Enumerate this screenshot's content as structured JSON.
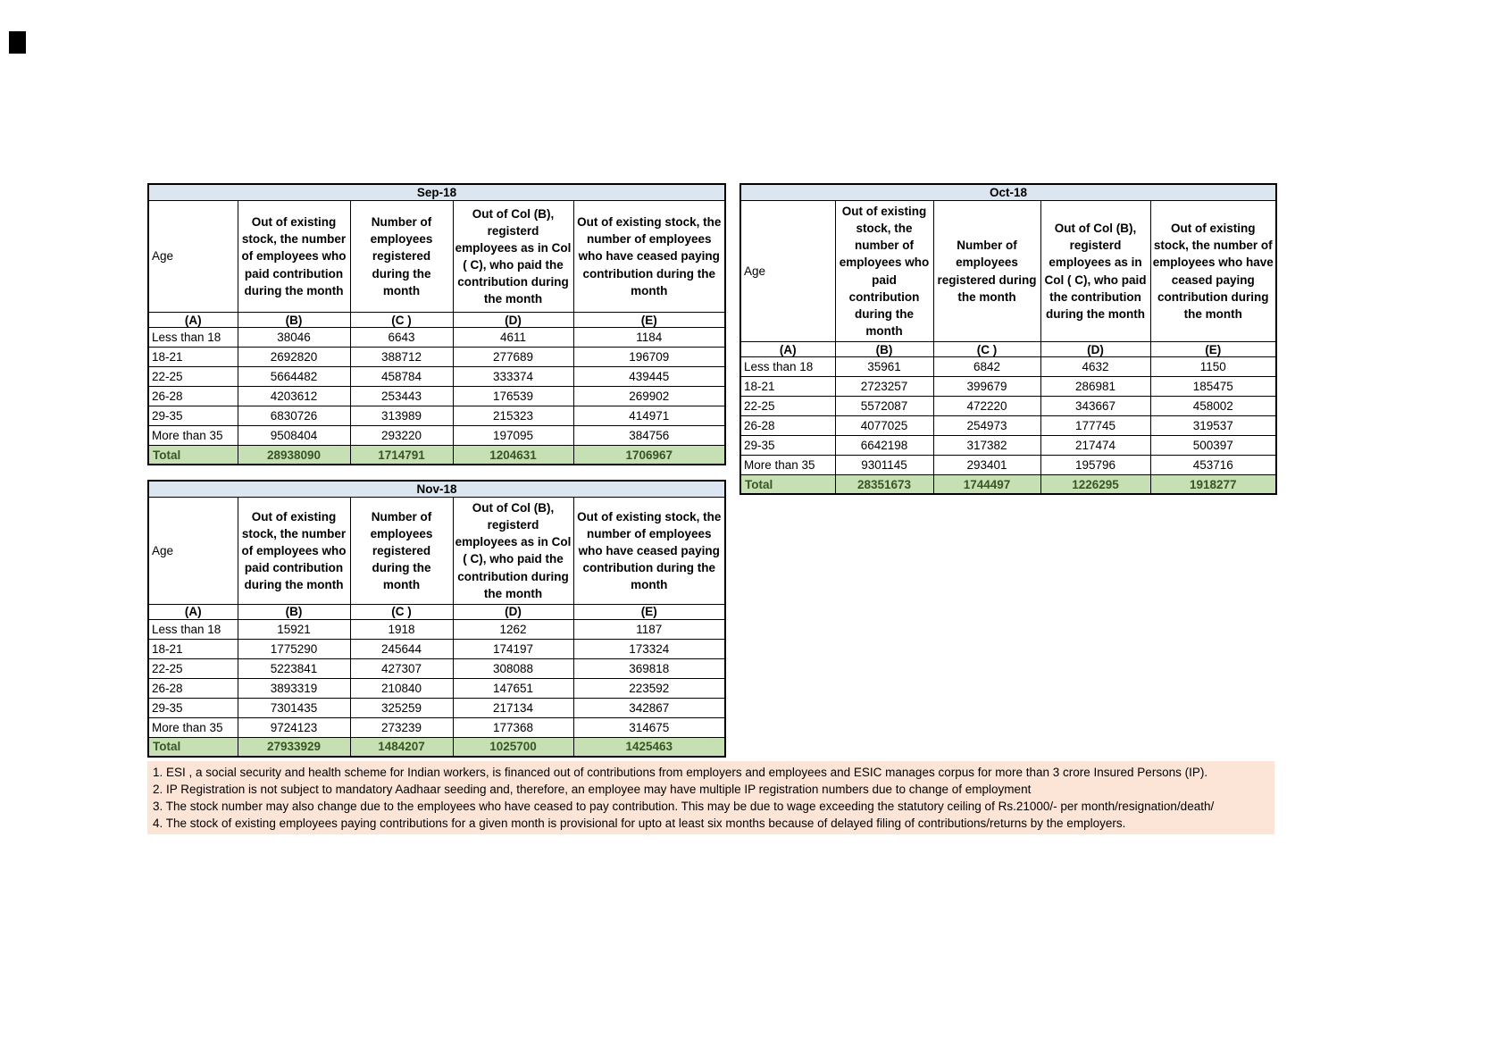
{
  "columns": {
    "age_label": "Age",
    "b": "Out of existing stock, the number of employees who paid contribution during the month",
    "c": "Number of employees registered during the month",
    "d": "Out of Col (B), registerd employees as in Col ( C), who paid the contribution during the month",
    "e": "Out of existing stock, the number of  employees  who have ceased paying contribution during the month",
    "sub": [
      "(A)",
      "(B)",
      "(C )",
      "(D)",
      "(E)"
    ]
  },
  "tables": [
    {
      "title": "Sep-18",
      "rows": [
        [
          "Less than 18",
          "38046",
          "6643",
          "4611",
          "1184"
        ],
        [
          "18-21",
          "2692820",
          "388712",
          "277689",
          "196709"
        ],
        [
          "22-25",
          "5664482",
          "458784",
          "333374",
          "439445"
        ],
        [
          "26-28",
          "4203612",
          "253443",
          "176539",
          "269902"
        ],
        [
          "29-35",
          "6830726",
          "313989",
          "215323",
          "414971"
        ],
        [
          "More than 35",
          "9508404",
          "293220",
          "197095",
          "384756"
        ]
      ],
      "total": [
        "Total",
        "28938090",
        "1714791",
        "1204631",
        "1706967"
      ]
    },
    {
      "title": "Oct-18",
      "rows": [
        [
          "Less than 18",
          "35961",
          "6842",
          "4632",
          "1150"
        ],
        [
          "18-21",
          "2723257",
          "399679",
          "286981",
          "185475"
        ],
        [
          "22-25",
          "5572087",
          "472220",
          "343667",
          "458002"
        ],
        [
          "26-28",
          "4077025",
          "254973",
          "177745",
          "319537"
        ],
        [
          "29-35",
          "6642198",
          "317382",
          "217474",
          "500397"
        ],
        [
          "More than 35",
          "9301145",
          "293401",
          "195796",
          "453716"
        ]
      ],
      "total": [
        "Total",
        "28351673",
        "1744497",
        "1226295",
        "1918277"
      ]
    },
    {
      "title": "Nov-18",
      "rows": [
        [
          "Less than 18",
          "15921",
          "1918",
          "1262",
          "1187"
        ],
        [
          "18-21",
          "1775290",
          "245644",
          "174197",
          "173324"
        ],
        [
          "22-25",
          "5223841",
          "427307",
          "308088",
          "369818"
        ],
        [
          "26-28",
          "3893319",
          "210840",
          "147651",
          "223592"
        ],
        [
          "29-35",
          "7301435",
          "325259",
          "217134",
          "342867"
        ],
        [
          "More than 35",
          "9724123",
          "273239",
          "177368",
          "314675"
        ]
      ],
      "total": [
        "Total",
        "27933929",
        "1484207",
        "1025700",
        "1425463"
      ]
    }
  ],
  "footnotes": [
    "1. ESI , a social security and health scheme for Indian workers, is financed out of contributions from employers and employees and ESIC manages corpus for more than 3 crore Insured Persons (IP).",
    "2. IP Registration is not subject to mandatory Aadhaar seeding and, therefore, an employee may have multiple IP registration numbers due to change of employment",
    "3. The stock number may also change due to the employees who have ceased to pay contribution. This may  be due to wage exceeding the statutory ceiling of  Rs.21000/- per month/resignation/death/",
    "4. The stock of existing employees paying contributions for a given month is provisional for upto at least six months because of delayed filing of contributions/returns by the employers."
  ],
  "colors": {
    "month_header_bg": "#dce6f1",
    "total_row_bg": "#c6e0b4",
    "total_row_text": "#375623",
    "footnote_bg": "#fce4d6",
    "border": "#000000"
  }
}
